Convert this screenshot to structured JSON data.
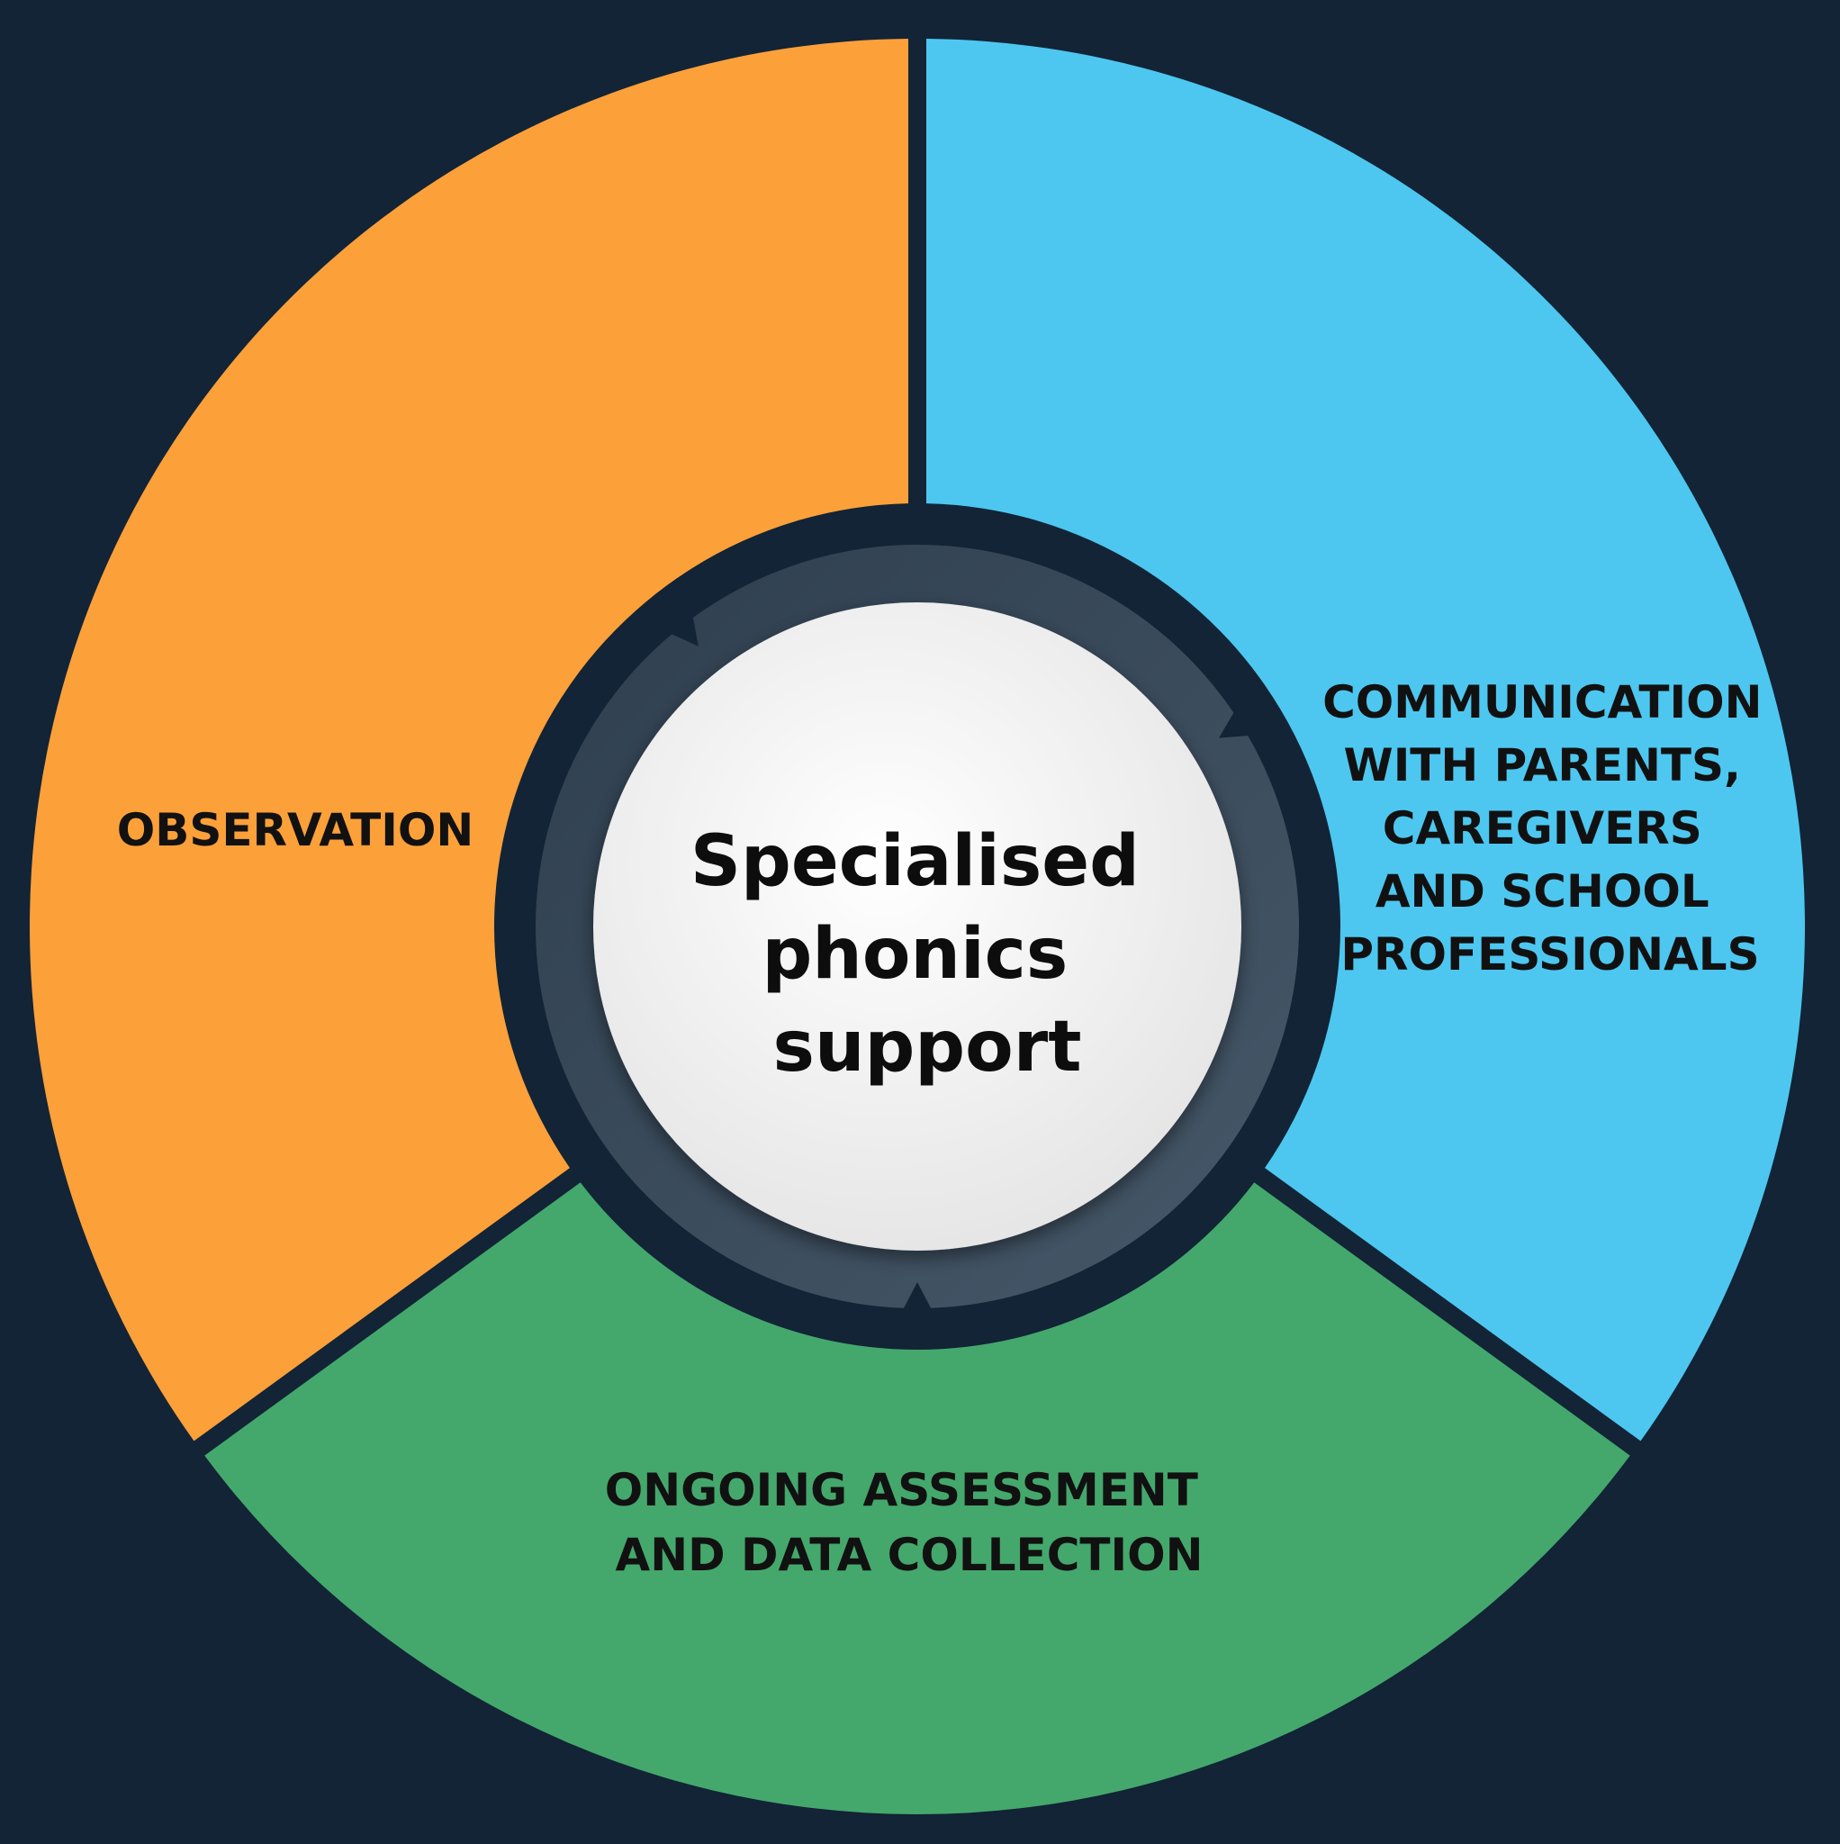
{
  "background_color": "#122436",
  "center": {
    "lines": [
      "Specialised",
      "phonics",
      "support"
    ]
  },
  "segments": [
    {
      "id": "observation",
      "color": "#fca03a",
      "lines": [
        "OBSERVATION"
      ]
    },
    {
      "id": "communication",
      "color": "#4dc7f0",
      "lines": [
        "COMMUNICATION",
        "WITH PARENTS,",
        "CAREGIVERS",
        "AND SCHOOL",
        "PROFESSIONALS"
      ]
    },
    {
      "id": "assessment",
      "color": "#44a86c",
      "lines": [
        "ONGOING ASSESSMENT",
        "AND DATA COLLECTION"
      ]
    }
  ],
  "ring_color": "#3a4b5c",
  "center_fill": "#f1f1f1"
}
